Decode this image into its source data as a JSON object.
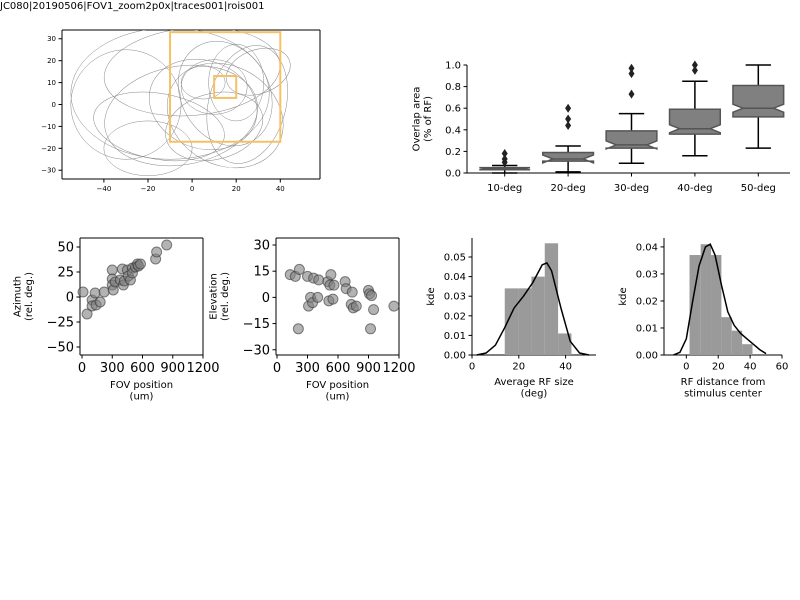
{
  "chart_data": [
    {
      "type": "ellipse",
      "title": "JC080|20190506|FOV1_zoom2p0x|traces001|rois001",
      "xlim": [
        -59,
        58
      ],
      "ylim": [
        -34,
        34
      ],
      "xticks": [
        {
          "value": -40,
          "label": "−40"
        },
        {
          "value": -20,
          "label": "−20"
        },
        0,
        20,
        40
      ],
      "yticks": [
        {
          "value": -30,
          "label": "−30"
        },
        {
          "value": -20,
          "label": "−20"
        },
        {
          "value": -10,
          "label": "−10"
        },
        0,
        10,
        20,
        30
      ],
      "ellipse_color": "#888888",
      "ellipses": [
        {
          "x": -5,
          "y": -5,
          "width": 70,
          "height": 45,
          "angle": 10
        },
        {
          "x": 5,
          "y": 0,
          "width": 50,
          "height": 40,
          "angle": -20
        },
        {
          "x": 10,
          "y": 8,
          "width": 30,
          "height": 25,
          "angle": 0
        },
        {
          "x": 15,
          "y": 5,
          "width": 40,
          "height": 50,
          "angle": 30
        },
        {
          "x": -15,
          "y": -10,
          "width": 60,
          "height": 30,
          "angle": -10
        },
        {
          "x": 20,
          "y": 10,
          "width": 25,
          "height": 35,
          "angle": 0
        },
        {
          "x": 0,
          "y": 15,
          "width": 80,
          "height": 40,
          "angle": 5
        },
        {
          "x": -30,
          "y": 0,
          "width": 50,
          "height": 50,
          "angle": 0
        },
        {
          "x": 10,
          "y": -10,
          "width": 45,
          "height": 30,
          "angle": 15
        },
        {
          "x": 25,
          "y": 0,
          "width": 35,
          "height": 55,
          "angle": -15
        },
        {
          "x": 5,
          "y": 10,
          "width": 20,
          "height": 15,
          "angle": 0
        },
        {
          "x": -10,
          "y": 5,
          "width": 90,
          "height": 60,
          "angle": 0
        },
        {
          "x": 30,
          "y": 15,
          "width": 30,
          "height": 20,
          "angle": 20
        },
        {
          "x": -20,
          "y": -20,
          "width": 40,
          "height": 25,
          "angle": 0
        },
        {
          "x": 15,
          "y": -5,
          "width": 55,
          "height": 45,
          "angle": -30
        }
      ],
      "rects": [
        {
          "x0": -10,
          "x1": 40,
          "y0": -17,
          "y1": 33,
          "color": "#f6c065"
        },
        {
          "x0": 10,
          "x1": 20,
          "y0": 3,
          "y1": 13,
          "color": "#f6c065"
        }
      ]
    },
    {
      "type": "box",
      "ylabel": "Overlap area\n(% of RF)",
      "categories": [
        "10-deg",
        "20-deg",
        "30-deg",
        "40-deg",
        "50-deg"
      ],
      "ylim": [
        0,
        1.0
      ],
      "yticks": [
        {
          "value": 0,
          "label": "0.0"
        },
        {
          "value": 0.2,
          "label": "0.2"
        },
        {
          "value": 0.4,
          "label": "0.4"
        },
        {
          "value": 0.6,
          "label": "0.6"
        },
        {
          "value": 0.8,
          "label": "0.8"
        },
        {
          "value": 1.0,
          "label": "1.0"
        }
      ],
      "color": "#808080",
      "boxes": [
        {
          "low": 0.0,
          "q1": 0.03,
          "median": 0.04,
          "q3": 0.05,
          "high": 0.07,
          "fliers": [
            0.1,
            0.13,
            0.18
          ]
        },
        {
          "low": 0.01,
          "q1": 0.11,
          "median": 0.13,
          "q3": 0.19,
          "high": 0.25,
          "fliers": [
            0.44,
            0.5,
            0.6
          ]
        },
        {
          "low": 0.09,
          "q1": 0.23,
          "median": 0.26,
          "q3": 0.39,
          "high": 0.55,
          "fliers": [
            0.73,
            0.92,
            0.97
          ]
        },
        {
          "low": 0.16,
          "q1": 0.36,
          "median": 0.41,
          "q3": 0.59,
          "high": 0.85,
          "fliers": [
            0.95,
            1.0
          ]
        },
        {
          "low": 0.23,
          "q1": 0.52,
          "median": 0.6,
          "q3": 0.81,
          "high": 1.0,
          "fliers": []
        }
      ]
    },
    {
      "type": "scatter",
      "xlabel": "FOV position\n(um)",
      "ylabel": "Azimuth\n(rel. deg.)",
      "xlim": [
        -20,
        1200
      ],
      "ylim": [
        -58,
        59
      ],
      "xticks": [
        0,
        300,
        600,
        900,
        1200
      ],
      "yticks": [
        {
          "value": -50,
          "label": "−50"
        },
        {
          "value": -25,
          "label": "−25"
        },
        0,
        25,
        50
      ],
      "color": "#808080",
      "x": [
        10,
        50,
        100,
        100,
        130,
        140,
        180,
        220,
        300,
        300,
        300,
        310,
        330,
        380,
        400,
        410,
        420,
        450,
        460,
        480,
        500,
        500,
        530,
        550,
        560,
        580,
        730,
        740,
        840
      ],
      "values": [
        5,
        -17,
        -3,
        -9,
        4,
        -8,
        -5,
        5,
        27,
        18,
        12,
        7,
        15,
        17,
        28,
        12,
        16,
        27,
        21,
        17,
        29,
        24,
        30,
        33,
        31,
        33,
        38,
        45,
        52
      ]
    },
    {
      "type": "scatter",
      "xlabel": "FOV position\n(um)",
      "ylabel": "Elevation\n(rel. deg.)",
      "xlim": [
        -10,
        1200
      ],
      "ylim": [
        -33,
        34
      ],
      "xticks": [
        0,
        300,
        600,
        900,
        1200
      ],
      "yticks": [
        {
          "value": -30,
          "label": "−30"
        },
        {
          "value": -15,
          "label": "−15"
        },
        0,
        15,
        30
      ],
      "color": "#808080",
      "x": [
        130,
        180,
        210,
        220,
        300,
        310,
        330,
        350,
        360,
        400,
        410,
        500,
        510,
        520,
        530,
        550,
        560,
        670,
        680,
        730,
        740,
        750,
        780,
        900,
        910,
        920,
        930,
        950,
        1150
      ],
      "values": [
        13,
        12,
        -18,
        16,
        12,
        -5,
        0,
        -3,
        11,
        0,
        10,
        9,
        -2,
        7,
        13,
        -1,
        7,
        9,
        5,
        -4,
        3,
        -6,
        -5,
        4,
        2,
        -18,
        1,
        -7,
        -5
      ]
    },
    {
      "type": "histogram",
      "xlabel": "Average RF size\n(deg)",
      "ylabel": "kde",
      "xlim": [
        0,
        53
      ],
      "ylim": [
        0,
        0.0597
      ],
      "xticks": [
        0,
        20,
        40
      ],
      "yticks": [
        {
          "value": 0,
          "label": "0.00"
        },
        {
          "value": 0.01,
          "label": "0.01"
        },
        {
          "value": 0.02,
          "label": "0.02"
        },
        {
          "value": 0.03,
          "label": "0.03"
        },
        {
          "value": 0.04,
          "label": "0.04"
        },
        {
          "value": 0.05,
          "label": "0.05"
        }
      ],
      "color": "#9a9a9a",
      "bins": [
        14,
        19.7,
        25.4,
        31.1,
        36.8,
        42.5
      ],
      "values": [
        0.034,
        0.034,
        0.04,
        0.057,
        0.011
      ],
      "kde": {
        "x": [
          2,
          6,
          10,
          14,
          18,
          22,
          26,
          30,
          32,
          34,
          38,
          42,
          46,
          50
        ],
        "y": [
          0,
          0.001,
          0.005,
          0.014,
          0.024,
          0.03,
          0.037,
          0.046,
          0.047,
          0.043,
          0.024,
          0.007,
          0.001,
          0
        ]
      }
    },
    {
      "type": "histogram",
      "xlabel": "RF distance from\nstimulus center",
      "ylabel": "kde",
      "xlim": [
        -14,
        60
      ],
      "ylim": [
        0,
        0.0433
      ],
      "xticks": [
        0,
        20,
        40,
        60
      ],
      "yticks": [
        {
          "value": 0,
          "label": "0.00"
        },
        {
          "value": 0.01,
          "label": "0.01"
        },
        {
          "value": 0.02,
          "label": "0.02"
        },
        {
          "value": 0.03,
          "label": "0.03"
        },
        {
          "value": 0.04,
          "label": "0.04"
        }
      ],
      "color": "#9a9a9a",
      "bins": [
        2,
        9,
        15.5,
        22,
        28.5,
        35,
        41.5
      ],
      "values": [
        0.037,
        0.041,
        0.037,
        0.014,
        0.009,
        0.004
      ],
      "kde": {
        "x": [
          -8,
          -4,
          0,
          4,
          8,
          12,
          15,
          18,
          22,
          26,
          30,
          34,
          38,
          42,
          46,
          50
        ],
        "y": [
          0,
          0.001,
          0.006,
          0.02,
          0.033,
          0.04,
          0.041,
          0.037,
          0.026,
          0.016,
          0.011,
          0.008,
          0.006,
          0.004,
          0.002,
          0.0005
        ]
      }
    }
  ]
}
